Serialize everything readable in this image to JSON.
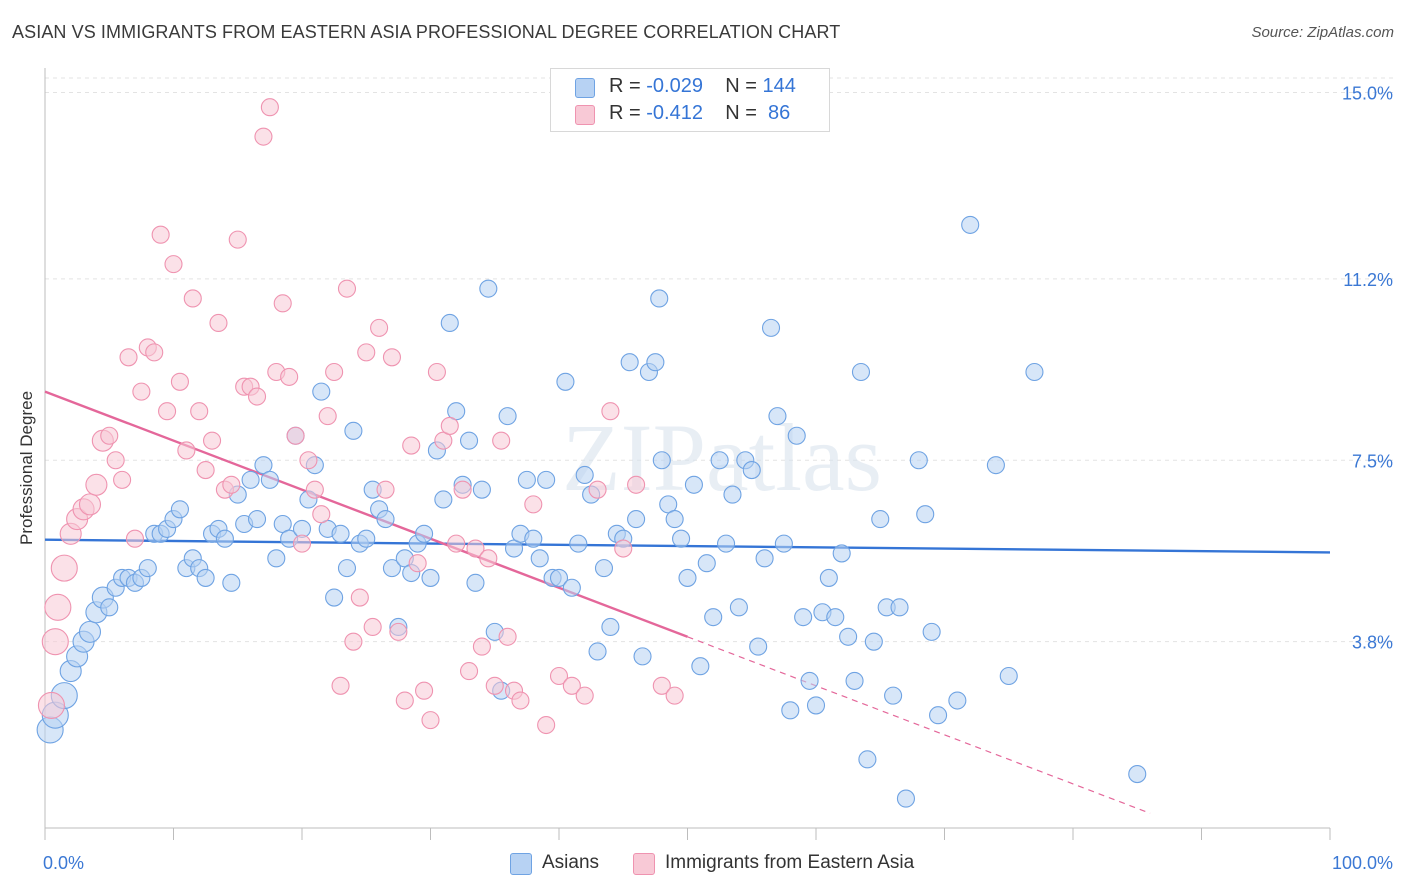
{
  "title": "ASIAN VS IMMIGRANTS FROM EASTERN ASIA PROFESSIONAL DEGREE CORRELATION CHART",
  "source": "Source: ZipAtlas.com",
  "watermark": "ZIPatlas",
  "legend": {
    "rows": [
      {
        "series": "Asians",
        "r_label": "R = ",
        "r_value": "-0.029",
        "n_label": "N = ",
        "n_value": "144",
        "color": "#a9c9f1"
      },
      {
        "series": "Immigrants from Eastern Asia",
        "r_label": "R = ",
        "r_value": "-0.412",
        "n_label": "N = ",
        "n_value": " 86",
        "color": "#f5b6c8"
      }
    ]
  },
  "chart_data": {
    "type": "scatter",
    "title": "ASIAN VS IMMIGRANTS FROM EASTERN ASIA PROFESSIONAL DEGREE CORRELATION CHART",
    "xlabel": "",
    "ylabel": "Professional Degree",
    "xlim": [
      0,
      100
    ],
    "ylim": [
      0,
      15.5
    ],
    "x_tick_labels": [
      "0.0%",
      "100.0%"
    ],
    "y_ticks": [
      3.8,
      7.5,
      11.2,
      15.0
    ],
    "y_tick_labels": [
      "3.8%",
      "7.5%",
      "11.2%",
      "15.0%"
    ],
    "grid": true,
    "legend_position": "top-center",
    "series": [
      {
        "name": "Asians",
        "color": "#6fa3e3",
        "fill": "#b7d2f3",
        "trend": {
          "x": [
            0,
            100
          ],
          "y": [
            5.88,
            5.62
          ],
          "color": "#3575d6"
        },
        "points": [
          [
            0.4,
            2.0
          ],
          [
            0.8,
            2.3
          ],
          [
            1.5,
            2.7
          ],
          [
            2,
            3.2
          ],
          [
            2.5,
            3.5
          ],
          [
            3,
            3.8
          ],
          [
            3.5,
            4.0
          ],
          [
            4,
            4.4
          ],
          [
            4.5,
            4.7
          ],
          [
            5,
            4.5
          ],
          [
            5.5,
            4.9
          ],
          [
            6,
            5.1
          ],
          [
            6.5,
            5.1
          ],
          [
            7,
            5.0
          ],
          [
            7.5,
            5.1
          ],
          [
            8,
            5.3
          ],
          [
            8.5,
            6.0
          ],
          [
            9,
            6.0
          ],
          [
            9.5,
            6.1
          ],
          [
            10,
            6.3
          ],
          [
            10.5,
            6.5
          ],
          [
            11,
            5.3
          ],
          [
            11.5,
            5.5
          ],
          [
            12,
            5.3
          ],
          [
            12.5,
            5.1
          ],
          [
            13,
            6.0
          ],
          [
            13.5,
            6.1
          ],
          [
            14,
            5.9
          ],
          [
            14.5,
            5.0
          ],
          [
            15,
            6.8
          ],
          [
            15.5,
            6.2
          ],
          [
            16,
            7.1
          ],
          [
            16.5,
            6.3
          ],
          [
            17,
            7.4
          ],
          [
            17.5,
            7.1
          ],
          [
            18,
            5.5
          ],
          [
            18.5,
            6.2
          ],
          [
            19,
            5.9
          ],
          [
            19.5,
            8.0
          ],
          [
            20,
            6.1
          ],
          [
            20.5,
            6.7
          ],
          [
            21,
            7.4
          ],
          [
            21.5,
            8.9
          ],
          [
            22,
            6.1
          ],
          [
            22.5,
            4.7
          ],
          [
            23,
            6.0
          ],
          [
            23.5,
            5.3
          ],
          [
            24,
            8.1
          ],
          [
            24.5,
            5.8
          ],
          [
            25,
            5.9
          ],
          [
            25.5,
            6.9
          ],
          [
            26,
            6.5
          ],
          [
            26.5,
            6.3
          ],
          [
            27,
            5.3
          ],
          [
            27.5,
            4.1
          ],
          [
            28,
            5.5
          ],
          [
            28.5,
            5.2
          ],
          [
            29,
            5.8
          ],
          [
            29.5,
            6.0
          ],
          [
            30,
            5.1
          ],
          [
            30.5,
            7.7
          ],
          [
            31,
            6.7
          ],
          [
            31.5,
            10.3
          ],
          [
            32,
            8.5
          ],
          [
            32.5,
            7.0
          ],
          [
            33,
            7.9
          ],
          [
            33.5,
            5.0
          ],
          [
            34,
            6.9
          ],
          [
            34.5,
            11.0
          ],
          [
            35,
            4.0
          ],
          [
            35.5,
            2.8
          ],
          [
            36,
            8.4
          ],
          [
            36.5,
            5.7
          ],
          [
            37,
            6.0
          ],
          [
            37.5,
            7.1
          ],
          [
            38,
            5.9
          ],
          [
            38.5,
            5.5
          ],
          [
            39,
            7.1
          ],
          [
            39.5,
            5.1
          ],
          [
            40,
            5.1
          ],
          [
            40.5,
            9.1
          ],
          [
            41,
            4.9
          ],
          [
            41.5,
            5.8
          ],
          [
            42,
            7.2
          ],
          [
            42.5,
            6.8
          ],
          [
            43,
            3.6
          ],
          [
            43.5,
            5.3
          ],
          [
            44,
            4.1
          ],
          [
            44.5,
            6.0
          ],
          [
            45,
            5.9
          ],
          [
            45.5,
            9.5
          ],
          [
            46,
            6.3
          ],
          [
            46.5,
            3.5
          ],
          [
            47,
            9.3
          ],
          [
            47.5,
            9.5
          ],
          [
            47.8,
            10.8
          ],
          [
            48,
            7.5
          ],
          [
            48.5,
            6.6
          ],
          [
            49,
            6.3
          ],
          [
            49.5,
            5.9
          ],
          [
            50,
            5.1
          ],
          [
            50.5,
            7.0
          ],
          [
            51,
            3.3
          ],
          [
            51.5,
            5.4
          ],
          [
            52,
            4.3
          ],
          [
            52.5,
            7.5
          ],
          [
            53,
            5.8
          ],
          [
            53.5,
            6.8
          ],
          [
            54,
            4.5
          ],
          [
            54.5,
            7.5
          ],
          [
            55,
            7.3
          ],
          [
            55.5,
            3.7
          ],
          [
            56,
            5.5
          ],
          [
            56.5,
            10.2
          ],
          [
            57,
            8.4
          ],
          [
            57.5,
            5.8
          ],
          [
            58,
            2.4
          ],
          [
            58.5,
            8.0
          ],
          [
            59,
            4.3
          ],
          [
            59.5,
            3.0
          ],
          [
            60,
            2.5
          ],
          [
            60.5,
            4.4
          ],
          [
            61,
            5.1
          ],
          [
            61.5,
            4.3
          ],
          [
            62,
            5.6
          ],
          [
            62.5,
            3.9
          ],
          [
            63,
            3.0
          ],
          [
            63.5,
            9.3
          ],
          [
            64,
            1.4
          ],
          [
            64.5,
            3.8
          ],
          [
            65,
            6.3
          ],
          [
            65.5,
            4.5
          ],
          [
            66,
            2.7
          ],
          [
            66.5,
            4.5
          ],
          [
            67,
            0.6
          ],
          [
            68,
            7.5
          ],
          [
            68.5,
            6.4
          ],
          [
            69,
            4.0
          ],
          [
            69.5,
            2.3
          ],
          [
            71,
            2.6
          ],
          [
            72,
            12.3
          ],
          [
            74,
            7.4
          ],
          [
            75,
            3.1
          ],
          [
            77,
            9.3
          ],
          [
            85,
            1.1
          ]
        ]
      },
      {
        "name": "Immigrants from Eastern Asia",
        "color": "#ef93b0",
        "fill": "#f8c9d6",
        "trend": {
          "x": [
            0,
            50
          ],
          "y": [
            8.9,
            3.9
          ],
          "color": "#e4679a"
        },
        "trend_dashed": {
          "x": [
            50,
            86
          ],
          "y": [
            3.9,
            0.3
          ]
        },
        "points": [
          [
            0.5,
            2.5
          ],
          [
            0.8,
            3.8
          ],
          [
            1,
            4.5
          ],
          [
            1.5,
            5.3
          ],
          [
            2,
            6.0
          ],
          [
            2.5,
            6.3
          ],
          [
            3,
            6.5
          ],
          [
            3.5,
            6.6
          ],
          [
            4,
            7.0
          ],
          [
            4.5,
            7.9
          ],
          [
            5,
            8.0
          ],
          [
            5.5,
            7.5
          ],
          [
            6,
            7.1
          ],
          [
            6.5,
            9.6
          ],
          [
            7,
            5.9
          ],
          [
            7.5,
            8.9
          ],
          [
            8,
            9.8
          ],
          [
            8.5,
            9.7
          ],
          [
            9,
            12.1
          ],
          [
            9.5,
            8.5
          ],
          [
            10,
            11.5
          ],
          [
            10.5,
            9.1
          ],
          [
            11,
            7.7
          ],
          [
            11.5,
            10.8
          ],
          [
            12,
            8.5
          ],
          [
            12.5,
            7.3
          ],
          [
            13,
            7.9
          ],
          [
            13.5,
            10.3
          ],
          [
            14,
            6.9
          ],
          [
            14.5,
            7.0
          ],
          [
            15,
            12.0
          ],
          [
            15.5,
            9.0
          ],
          [
            16,
            9.0
          ],
          [
            16.5,
            8.8
          ],
          [
            17,
            14.1
          ],
          [
            17.5,
            14.7
          ],
          [
            18,
            9.3
          ],
          [
            18.5,
            10.7
          ],
          [
            19,
            9.2
          ],
          [
            19.5,
            8.0
          ],
          [
            20,
            5.8
          ],
          [
            20.5,
            7.5
          ],
          [
            21,
            6.9
          ],
          [
            21.5,
            6.4
          ],
          [
            22,
            8.4
          ],
          [
            22.5,
            9.3
          ],
          [
            23,
            2.9
          ],
          [
            23.5,
            11.0
          ],
          [
            24,
            3.8
          ],
          [
            24.5,
            4.7
          ],
          [
            25,
            9.7
          ],
          [
            25.5,
            4.1
          ],
          [
            26,
            10.2
          ],
          [
            26.5,
            6.9
          ],
          [
            27,
            9.6
          ],
          [
            27.5,
            4.0
          ],
          [
            28,
            2.6
          ],
          [
            28.5,
            7.8
          ],
          [
            29,
            5.4
          ],
          [
            29.5,
            2.8
          ],
          [
            30,
            2.2
          ],
          [
            30.5,
            9.3
          ],
          [
            31,
            7.9
          ],
          [
            31.5,
            8.2
          ],
          [
            32,
            5.8
          ],
          [
            32.5,
            6.9
          ],
          [
            33,
            3.2
          ],
          [
            33.5,
            5.7
          ],
          [
            34,
            3.7
          ],
          [
            34.5,
            5.5
          ],
          [
            35,
            2.9
          ],
          [
            35.5,
            7.9
          ],
          [
            36,
            3.9
          ],
          [
            36.5,
            2.8
          ],
          [
            37,
            2.6
          ],
          [
            38,
            6.6
          ],
          [
            39,
            2.1
          ],
          [
            40,
            3.1
          ],
          [
            41,
            2.9
          ],
          [
            42,
            2.7
          ],
          [
            43,
            6.9
          ],
          [
            44,
            8.5
          ],
          [
            45,
            5.7
          ],
          [
            46,
            7.0
          ],
          [
            48,
            2.9
          ],
          [
            49,
            2.7
          ]
        ]
      }
    ]
  }
}
